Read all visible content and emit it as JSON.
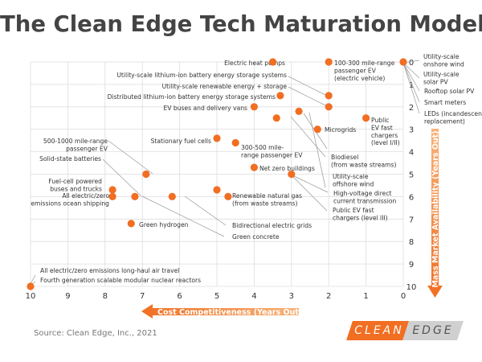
{
  "title": "The Clean Edge Tech Maturation Model",
  "source": "Source: Clean Edge, Inc., 2021",
  "logo": {
    "part1": "CLEAN",
    "part2": "EDGE"
  },
  "colors": {
    "marker": "#f16e22",
    "title": "#444444",
    "grid": "#dddddd",
    "xaxis_arrow": "#f16e22",
    "yaxis_arrow": "#f16e22"
  },
  "chart_data": {
    "type": "scatter",
    "title": "The Clean Edge Tech Maturation Model",
    "xlabel": "Cost Competitiveness (Years Out)",
    "ylabel": "Mass Market Availability (Years Out)",
    "xlim": [
      10,
      0
    ],
    "ylim": [
      10,
      0
    ],
    "x_ticks": [
      "10",
      "9",
      "8",
      "7",
      "6",
      "5",
      "4",
      "3",
      "2",
      "1",
      "0"
    ],
    "y_ticks": [
      "0",
      "1",
      "2",
      "3",
      "4",
      "5",
      "6",
      "7",
      "8",
      "9",
      "10"
    ],
    "grid": true,
    "points": [
      {
        "x": 0,
        "y": 0,
        "labels": []
      },
      {
        "x": 10,
        "y": 10,
        "labels": []
      },
      {
        "x": 3.5,
        "y": 0,
        "labels": []
      },
      {
        "x": 2,
        "y": 0,
        "labels": []
      },
      {
        "x": 2,
        "y": 1.5,
        "labels": []
      },
      {
        "x": 2,
        "y": 2,
        "labels": []
      },
      {
        "x": 3.3,
        "y": 1.5,
        "labels": []
      },
      {
        "x": 4,
        "y": 2,
        "labels": []
      },
      {
        "x": 2.8,
        "y": 2.2,
        "labels": []
      },
      {
        "x": 3.4,
        "y": 2.5,
        "labels": []
      },
      {
        "x": 2.3,
        "y": 3,
        "labels": []
      },
      {
        "x": 1,
        "y": 2.5,
        "labels": []
      },
      {
        "x": 5,
        "y": 3.4,
        "labels": []
      },
      {
        "x": 4.5,
        "y": 3.6,
        "labels": []
      },
      {
        "x": 6.9,
        "y": 5,
        "labels": []
      },
      {
        "x": 4,
        "y": 4.7,
        "labels": []
      },
      {
        "x": 3,
        "y": 5,
        "labels": []
      },
      {
        "x": 7.8,
        "y": 5.7,
        "labels": []
      },
      {
        "x": 7.8,
        "y": 6,
        "labels": []
      },
      {
        "x": 7.2,
        "y": 6,
        "labels": []
      },
      {
        "x": 6.2,
        "y": 6,
        "labels": []
      },
      {
        "x": 5,
        "y": 5.7,
        "labels": []
      },
      {
        "x": 4.7,
        "y": 6,
        "labels": []
      },
      {
        "x": 7.3,
        "y": 7.2,
        "labels": []
      }
    ],
    "annotations": [
      {
        "id": "a-heat",
        "lines": [
          "Electric heat pumps"
        ]
      },
      {
        "id": "a-ev",
        "lines": [
          "100-300 mile-range",
          "passenger EV",
          "(electric vehicle)"
        ]
      },
      {
        "id": "a-onshore",
        "lines": [
          "Utility-scale",
          "onshore wind"
        ]
      },
      {
        "id": "a-solarpv",
        "lines": [
          "Utility-scale",
          "solar PV"
        ]
      },
      {
        "id": "a-rooftop",
        "lines": [
          "Rooftop solar PV"
        ]
      },
      {
        "id": "a-meters",
        "lines": [
          "Smart meters"
        ]
      },
      {
        "id": "a-leds",
        "lines": [
          "LEDs (incandescent",
          "replacement)"
        ]
      },
      {
        "id": "a-liion",
        "lines": [
          "Utility-scale lithium-ion battery energy storage systems"
        ]
      },
      {
        "id": "a-renew",
        "lines": [
          "Utility-scale renewable energy + storage"
        ]
      },
      {
        "id": "a-distli",
        "lines": [
          "Distributed lithium-ion battery energy storage systems"
        ]
      },
      {
        "id": "a-evbus",
        "lines": [
          "EV buses and delivery vans"
        ]
      },
      {
        "id": "a-microgrids",
        "lines": [
          "Microgrids"
        ]
      },
      {
        "id": "a-publicev",
        "lines": [
          "Public",
          "EV fast",
          "chargers",
          "(level I/II)"
        ]
      },
      {
        "id": "a-statcell",
        "lines": [
          "Stationary fuel cells"
        ]
      },
      {
        "id": "a-300500",
        "lines": [
          "300-500 mile-",
          "range passenger EV"
        ]
      },
      {
        "id": "a-5001000",
        "lines": [
          "500-1000 mile-range",
          "passenger EV"
        ]
      },
      {
        "id": "a-biodiesel",
        "lines": [
          "Biodiesel",
          "(from waste streams)"
        ]
      },
      {
        "id": "a-solidstate",
        "lines": [
          "Solid-state batteries"
        ]
      },
      {
        "id": "a-netzero",
        "lines": [
          "Net zero buildings"
        ]
      },
      {
        "id": "a-offshore",
        "lines": [
          "Utility-scale",
          "offshore wind"
        ]
      },
      {
        "id": "a-fuelcellbus",
        "lines": [
          "Fuel-cell powered",
          "buses and trucks"
        ]
      },
      {
        "id": "a-shipping",
        "lines": [
          "All electric/zero",
          "emissions ocean shipping"
        ]
      },
      {
        "id": "a-hvdc",
        "lines": [
          "High-voltage direct",
          "current transmission"
        ]
      },
      {
        "id": "a-rng",
        "lines": [
          "Renewable natural gas",
          "(from waste streams)"
        ]
      },
      {
        "id": "a-publicev3",
        "lines": [
          "Public EV fast",
          "chargers (level III)"
        ]
      },
      {
        "id": "a-bidir",
        "lines": [
          "Bidirectional electric grids"
        ]
      },
      {
        "id": "a-hydrogen",
        "lines": [
          "Green hydrogen"
        ]
      },
      {
        "id": "a-concrete",
        "lines": [
          "Green concrete"
        ]
      },
      {
        "id": "a-airtravel",
        "lines": [
          "All electric/zero emissions long-haul air travel"
        ]
      },
      {
        "id": "a-nuclear",
        "lines": [
          "Fourth generation scalable modular nuclear reactors"
        ]
      }
    ]
  }
}
